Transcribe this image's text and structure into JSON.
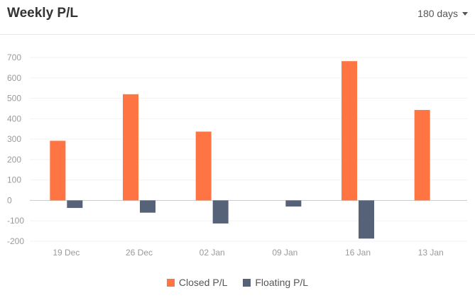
{
  "header": {
    "title": "Weekly P/L",
    "range_label": "180 days",
    "caret_icon": "caret-down-icon"
  },
  "chart_data": {
    "type": "bar",
    "categories": [
      "19 Dec",
      "26 Dec",
      "02 Jan",
      "09 Jan",
      "16 Jan",
      "13 Jan"
    ],
    "series": [
      {
        "name": "Closed P/L",
        "color": "#ff7443",
        "values": [
          292,
          520,
          337,
          0,
          682,
          443
        ]
      },
      {
        "name": "Floating P/L",
        "color": "#556278",
        "values": [
          -37,
          -60,
          -113,
          -30,
          -187,
          0
        ]
      }
    ],
    "y_ticks": [
      -200,
      -100,
      0,
      100,
      200,
      300,
      400,
      500,
      600,
      700
    ],
    "ylim": [
      -200,
      700
    ],
    "grid": true,
    "legend_position": "bottom-center"
  }
}
